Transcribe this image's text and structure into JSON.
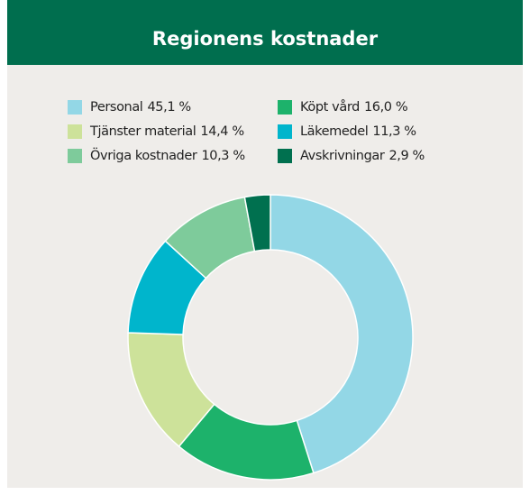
{
  "chart_data": {
    "type": "pie",
    "donut": true,
    "title": "Regionens kostnader",
    "categories": [
      "Personal",
      "Köpt vård",
      "Tjänster material",
      "Läkemedel",
      "Övriga kostnader",
      "Avskrivningar"
    ],
    "values": [
      45.1,
      16.0,
      14.4,
      11.3,
      10.3,
      2.9
    ],
    "value_labels": [
      "45,1 %",
      "16,0 %",
      "14,4 %",
      "11,3 %",
      "10,3 %",
      "2,9 %"
    ],
    "colors": [
      "#93d7e6",
      "#1db26b",
      "#cde29a",
      "#00b5cc",
      "#7ecb9b",
      "#00704f"
    ],
    "legend": "top"
  }
}
